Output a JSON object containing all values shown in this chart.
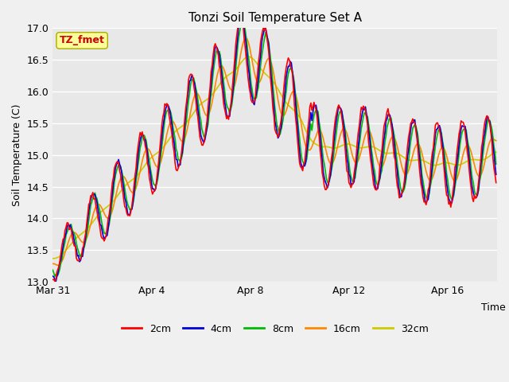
{
  "title": "Tonzi Soil Temperature Set A",
  "ylabel": "Soil Temperature (C)",
  "xlabel": "Time",
  "ylim": [
    13.0,
    17.0
  ],
  "yticks": [
    13.0,
    13.5,
    14.0,
    14.5,
    15.0,
    15.5,
    16.0,
    16.5,
    17.0
  ],
  "xtick_dates": [
    "Mar 31",
    "Apr 4",
    "Apr 8",
    "Apr 12",
    "Apr 16"
  ],
  "xtick_offsets_days": [
    0,
    4,
    8,
    12,
    16
  ],
  "legend_labels": [
    "2cm",
    "4cm",
    "8cm",
    "16cm",
    "32cm"
  ],
  "legend_colors": [
    "#ff0000",
    "#0000dd",
    "#00bb00",
    "#ff8800",
    "#cccc00"
  ],
  "annotation_text": "TZ_fmet",
  "annotation_bg": "#ffff99",
  "annotation_border": "#aaaa00",
  "annotation_text_color": "#cc0000",
  "plot_bg_color": "#e8e8e8",
  "fig_bg_color": "#f0f0f0",
  "line_width": 1.2,
  "grid_color": "#ffffff",
  "steps_per_day": 24
}
